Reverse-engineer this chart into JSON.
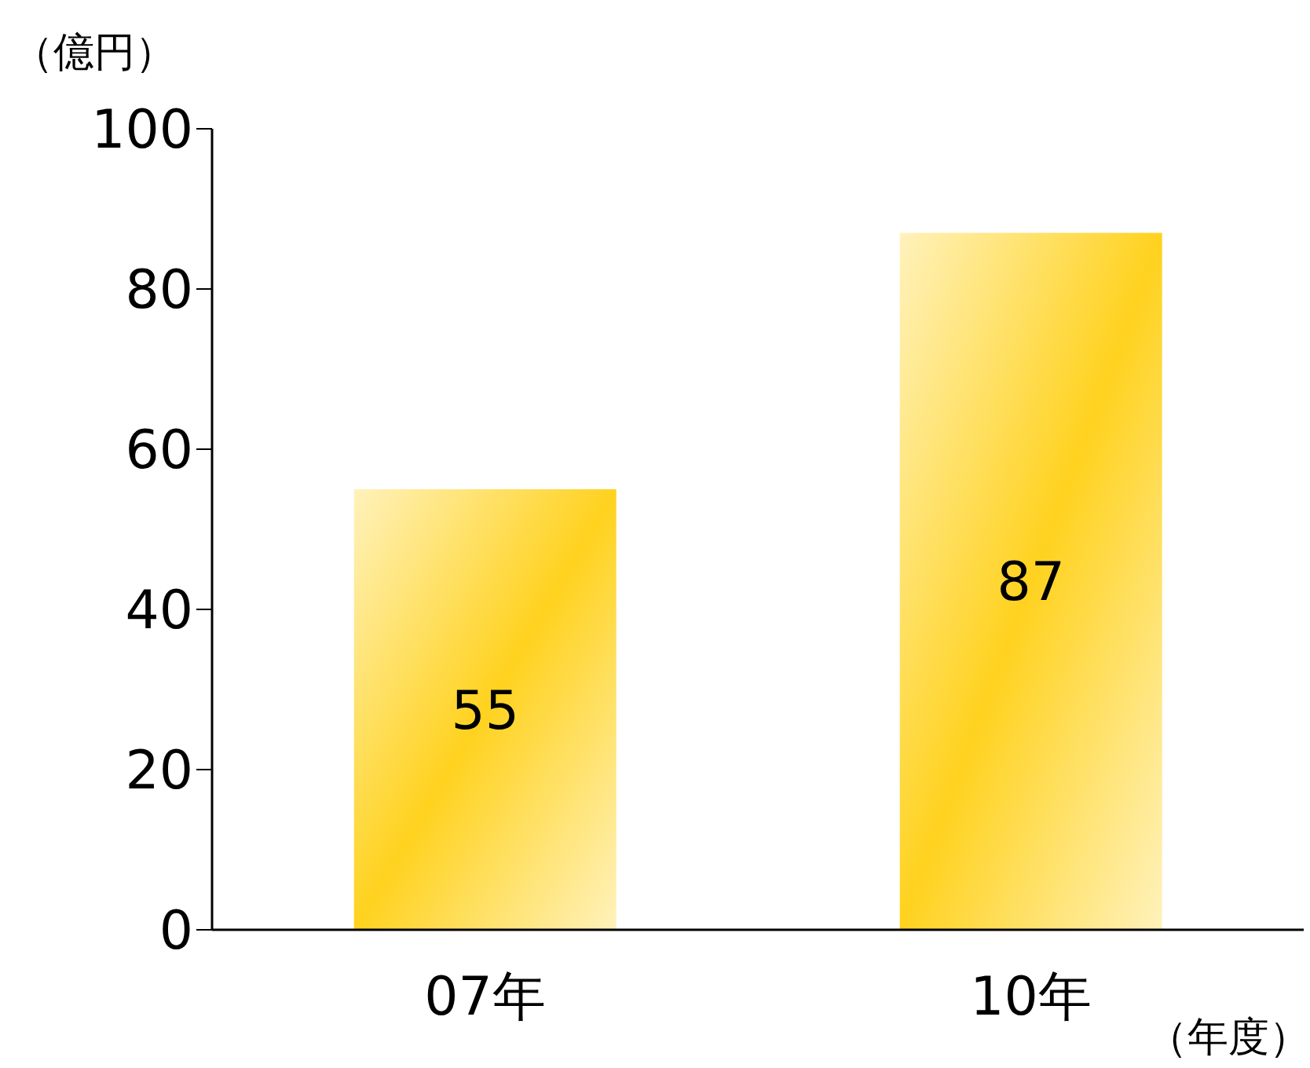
{
  "chart_data": {
    "type": "bar",
    "ylabel": "（億円）",
    "xlabel": "（年度）",
    "categories": [
      "07年",
      "10年"
    ],
    "values": [
      55,
      87
    ],
    "color": "#ffd21f",
    "ylim": [
      0,
      100
    ],
    "yticks": [
      0,
      20,
      40,
      60,
      80,
      100
    ],
    "data_labels": true,
    "grid": false,
    "legend": false
  }
}
